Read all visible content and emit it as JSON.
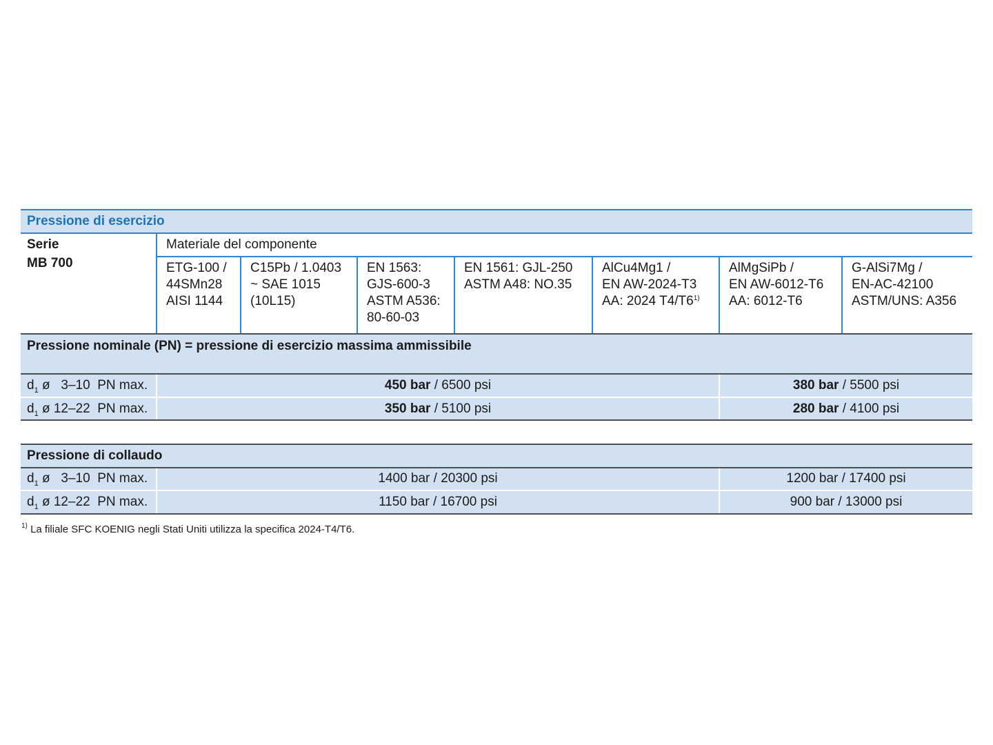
{
  "section_title": "Pressione di esercizio",
  "series": {
    "line1": "Serie",
    "line2": "MB 700"
  },
  "material_header": "Materiale del componente",
  "materials": [
    {
      "text": "ETG-100 /\n44SMn28\nAISI 1144"
    },
    {
      "text": "C15Pb / 1.0403\n~ SAE 1015\n(10L15)"
    },
    {
      "text": "EN 1563:\nGJS-600-3\nASTM A536:\n80-60-03"
    },
    {
      "text": "EN 1561: GJL-250\nASTM A48: NO.35"
    },
    {
      "text": "AlCu4Mg1 /\nEN AW-2024-T3\nAA: 2024 T4/T6",
      "sup": "1)"
    },
    {
      "text": "AlMgSiPb /\nEN AW-6012-T6\nAA: 6012-T6"
    },
    {
      "text": "G-AlSi7Mg /\nEN-AC-42100\nASTM/UNS: A356"
    }
  ],
  "nominal": {
    "title": "Pressione nominale (PN) = pressione di esercizio massima ammissibile",
    "rows": [
      {
        "d": "d",
        "sub": "1",
        "label": " ø   3–10  PN max.",
        "left_bold": "450 bar",
        "left_rest": " / 6500 psi",
        "right_bold": "380 bar",
        "right_rest": " / 5500 psi"
      },
      {
        "d": "d",
        "sub": "1",
        "label": " ø 12–22  PN max.",
        "left_bold": "350 bar",
        "left_rest": " / 5100 psi",
        "right_bold": "280 bar",
        "right_rest": " / 4100 psi"
      }
    ]
  },
  "test": {
    "title": "Pressione di collaudo",
    "rows": [
      {
        "d": "d",
        "sub": "1",
        "label": " ø   3–10  PN max.",
        "left": "1400 bar / 20300 psi",
        "right": "1200 bar / 17400 psi"
      },
      {
        "d": "d",
        "sub": "1",
        "label": " ø 12–22  PN max.",
        "left": "1150 bar / 16700 psi",
        "right": "900 bar / 13000 psi"
      }
    ]
  },
  "footnote": {
    "mark": "1)",
    "text": " La filiale SFC KOENIG negli Stati Uniti utilizza la specifica 2024-T4/T6."
  },
  "colors": {
    "accent": "#1a74bd",
    "band": "#d2e1f1",
    "rule_blue": "#2f86cc",
    "rule_dark": "#4a4f55"
  }
}
